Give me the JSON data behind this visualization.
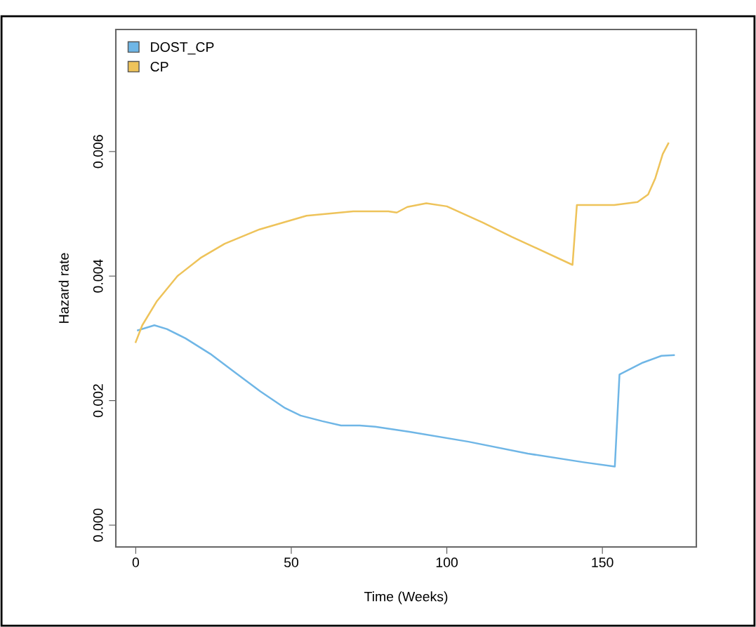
{
  "chart_data": {
    "type": "line",
    "xlabel": "Time (Weeks)",
    "ylabel": "Hazard rate",
    "xlim": [
      -6.4,
      180.2
    ],
    "ylim": [
      -0.00035,
      0.00796
    ],
    "xticks": [
      0,
      50,
      100,
      150
    ],
    "yticks": [
      {
        "value": 0,
        "label": "0.000"
      },
      {
        "value": 0.002,
        "label": "0.002"
      },
      {
        "value": 0.004,
        "label": "0.004"
      },
      {
        "value": 0.006,
        "label": "0.006"
      }
    ],
    "legend": "top left",
    "grid": false,
    "marker": "none",
    "line_style": "solid",
    "series": [
      {
        "name": "DOST_CP",
        "color": "#6fb6e6",
        "x": [
          0.7,
          6,
          10,
          16,
          24,
          32,
          40,
          48,
          53,
          60,
          66,
          72,
          77,
          88,
          107,
          126,
          144,
          154,
          155.5,
          163,
          169,
          173
        ],
        "values": [
          0.00313,
          0.00321,
          0.00315,
          0.003,
          0.00275,
          0.00245,
          0.00215,
          0.00188,
          0.00176,
          0.00167,
          0.0016,
          0.0016,
          0.00158,
          0.0015,
          0.00134,
          0.00115,
          0.00101,
          0.00094,
          0.00242,
          0.00261,
          0.00272,
          0.00273
        ]
      },
      {
        "name": "CP",
        "color": "#eec35a",
        "x": [
          0,
          2.1,
          6.7,
          13.4,
          21.1,
          28.6,
          39.8,
          54.9,
          69.9,
          81.2,
          83.9,
          87.3,
          93.4,
          100,
          111.5,
          120.9,
          140.4,
          141.8,
          153.8,
          161.3,
          164.7,
          167,
          169.4,
          171.2
        ],
        "values": [
          0.00294,
          0.00321,
          0.00359,
          0.004,
          0.0043,
          0.00452,
          0.00475,
          0.00497,
          0.00504,
          0.00504,
          0.00502,
          0.00511,
          0.00517,
          0.00512,
          0.00486,
          0.00463,
          0.00418,
          0.00514,
          0.00514,
          0.00519,
          0.00531,
          0.00557,
          0.00596,
          0.00613
        ]
      }
    ]
  }
}
